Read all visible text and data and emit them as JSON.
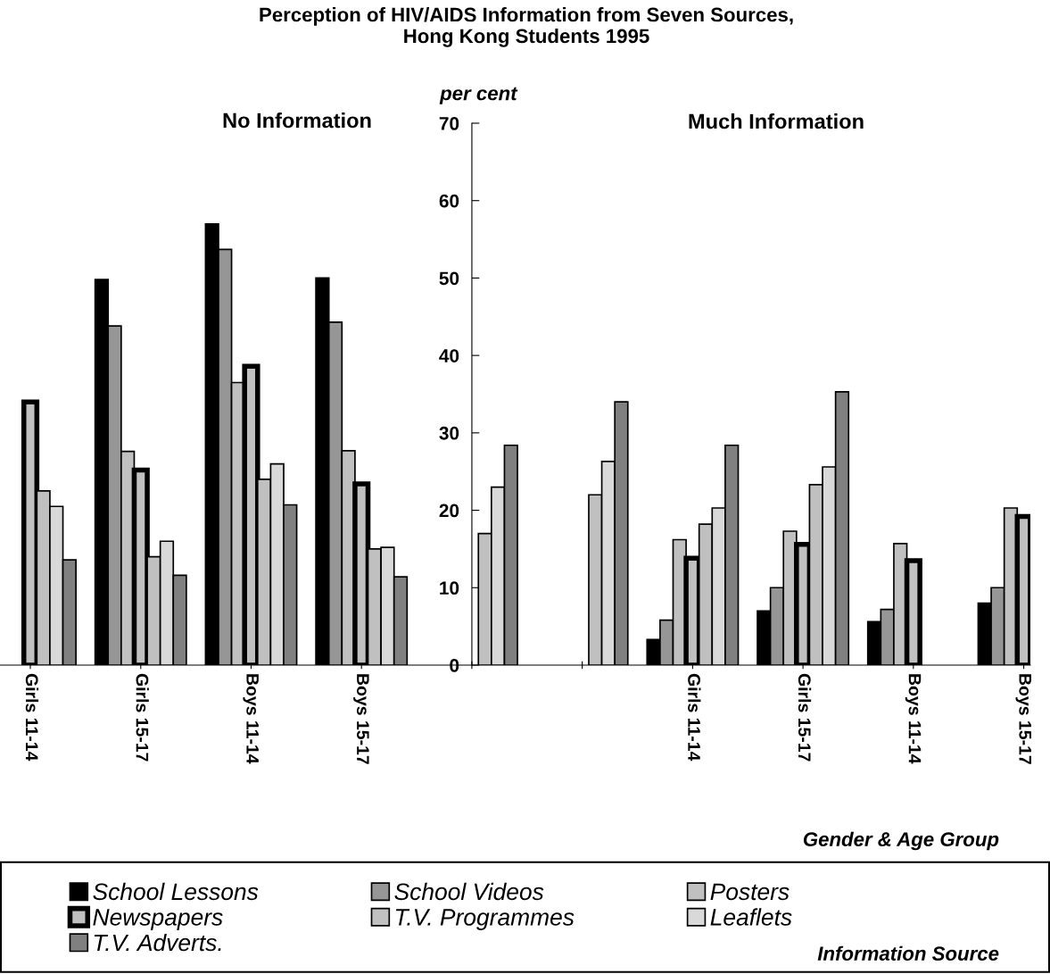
{
  "chart_data": {
    "type": "bar",
    "title": "Perception of HIV/AIDS Information from Seven Sources,\nHong Kong Students 1995",
    "ylabel": "per cent",
    "xlabel": "Gender & Age Group",
    "legend_title": "Information Source",
    "annotations": [
      "No Information",
      "Much Information"
    ],
    "categories": [
      "Girls 11-14",
      "Girls 15-17",
      "Boys 11-14",
      "Boys 15-17",
      null,
      null,
      "Girls 11-14",
      "Girls 15-17",
      "Boys 11-14",
      "Boys 15-17"
    ],
    "series": [
      {
        "name": "School Lessons",
        "color": "#000000",
        "values": [
          null,
          49.8,
          57,
          50,
          null,
          null,
          3.3,
          7,
          5.6,
          8
        ]
      },
      {
        "name": "School Videos",
        "color": "#969696",
        "values": [
          null,
          43.8,
          53.7,
          44.3,
          null,
          null,
          5.8,
          10,
          7.2,
          10
        ]
      },
      {
        "name": "Posters",
        "color": "#c0c0c0",
        "values": [
          null,
          27.6,
          36.5,
          27.7,
          null,
          null,
          16.2,
          17.3,
          15.7,
          20.3
        ]
      },
      {
        "name": "Newspapers",
        "color": "#c0c0c0",
        "values": [
          34,
          25.2,
          38.6,
          23.4,
          null,
          null,
          13.8,
          15.6,
          13.5,
          19.2
        ]
      },
      {
        "name": "T.V. Programmes",
        "color": "#c0c0c0",
        "values": [
          22.5,
          14,
          24,
          15,
          17,
          22,
          18.2,
          23.3,
          null,
          null
        ]
      },
      {
        "name": "Leaflets",
        "color": "#d9d9d9",
        "values": [
          20.5,
          16,
          26,
          15.2,
          23,
          26.3,
          20.3,
          25.6,
          null,
          null
        ]
      },
      {
        "name": "T.V. Adverts.",
        "color": "#808080",
        "values": [
          13.6,
          11.6,
          20.7,
          11.4,
          28.4,
          34,
          28.4,
          35.3,
          null,
          null
        ]
      }
    ],
    "ylim": [
      0,
      70
    ],
    "yticks": [
      0,
      10,
      20,
      30,
      40,
      50,
      60,
      70
    ],
    "grid": false,
    "legend": "bottom"
  }
}
